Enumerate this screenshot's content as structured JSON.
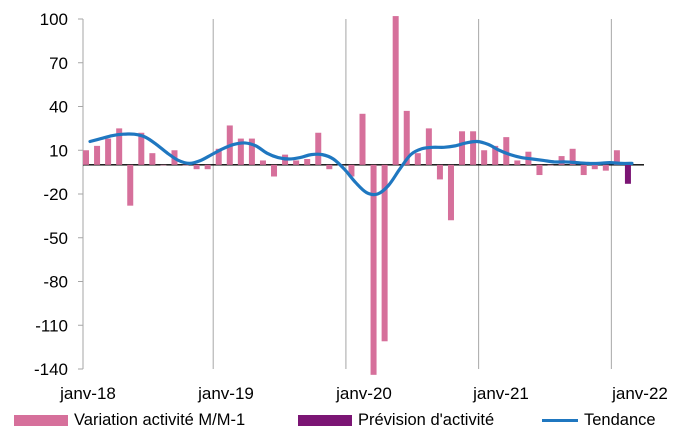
{
  "chart_data": {
    "type": "bar",
    "x_labels": [
      "janv-18",
      "janv-19",
      "janv-20",
      "janv-21",
      "janv-22"
    ],
    "y_ticks": [
      100,
      70,
      40,
      10,
      -20,
      -50,
      -80,
      -110,
      -140
    ],
    "ylim": [
      -140,
      100
    ],
    "months_range": [
      "janv-18",
      "févr-22"
    ],
    "grid": "vertical at January of each year",
    "legend_position": "bottom",
    "series": [
      {
        "name": "Variation activité M/M-1",
        "type": "bar",
        "color": "#d6709b",
        "values": [
          10,
          13,
          18,
          25,
          -28,
          22,
          8,
          0,
          10,
          0,
          -3,
          -3,
          11,
          27,
          18,
          18,
          3,
          -8,
          7,
          3,
          4,
          22,
          -3,
          0,
          -8,
          35,
          -144,
          -121,
          102,
          37,
          8,
          25,
          -10,
          -38,
          23,
          23,
          10,
          13,
          19,
          3,
          9,
          -7,
          0,
          6,
          11,
          -7,
          -3,
          -4,
          10
        ]
      },
      {
        "name": "Prévision d'activité",
        "type": "bar",
        "color": "#7b1574",
        "values": [
          -13
        ],
        "at_month_index": 49
      },
      {
        "name": "Tendance",
        "type": "line",
        "color": "#1f77c0",
        "values": [
          16,
          18,
          20,
          21,
          21,
          19,
          14,
          8,
          3,
          1,
          3,
          7,
          11,
          14,
          15,
          13,
          8,
          5,
          4,
          5,
          7,
          7,
          4,
          -3,
          -12,
          -19,
          -20,
          -14,
          -3,
          7,
          11,
          12,
          12,
          13,
          15,
          16,
          14,
          10,
          7,
          5,
          4,
          3,
          2,
          2,
          1.5,
          1,
          1,
          1.5,
          1,
          1
        ]
      }
    ]
  }
}
